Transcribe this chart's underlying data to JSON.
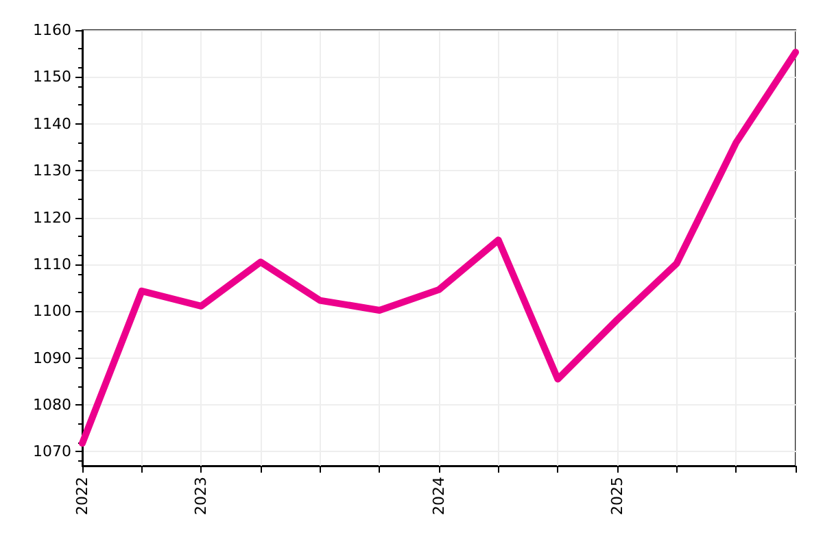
{
  "chart_data": {
    "type": "line",
    "categories": [
      "2022",
      null,
      "2023",
      null,
      null,
      null,
      "2024",
      null,
      null,
      "2025",
      null,
      null,
      null
    ],
    "series": [
      {
        "color": "#ec008c",
        "values": [
          1071.8,
          1104.3,
          1101.1,
          1110.5,
          1102.3,
          1100.2,
          1104.6,
          1115.2,
          1085.5,
          1098.2,
          1110.2,
          1136.0,
          1155.3
        ]
      }
    ],
    "ylim": [
      1067,
      1160
    ],
    "yticks": [
      1070,
      1080,
      1090,
      1100,
      1110,
      1120,
      1130,
      1140,
      1150,
      1160
    ],
    "grid": true,
    "marker": "none",
    "line_style": "solid"
  }
}
